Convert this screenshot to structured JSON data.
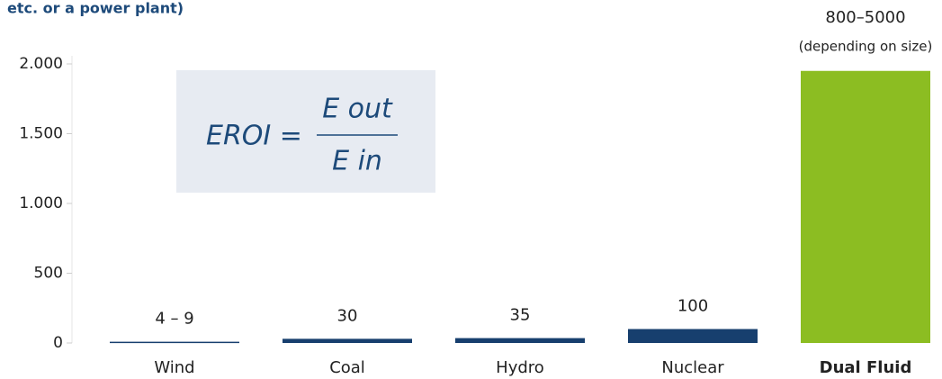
{
  "chart_data": {
    "type": "bar",
    "title": "etc. or a power plant)",
    "categories": [
      "Wind",
      "Coal",
      "Hydro",
      "Nuclear",
      "Dual Fluid"
    ],
    "values": [
      9,
      30,
      35,
      100,
      1950
    ],
    "value_labels": [
      "4 – 9",
      "30",
      "35",
      "100",
      "800–5000"
    ],
    "colors": [
      "#173f6e",
      "#173f6e",
      "#173f6e",
      "#173f6e",
      "#8cbd22"
    ],
    "highlight_label": "Dual Fluid",
    "bar_note": "(depending on size)",
    "formula": {
      "left": "EROI =",
      "numerator": "E out",
      "denominator": "E in"
    },
    "ylim": [
      0,
      2000
    ],
    "yticks": [
      0,
      500,
      {
        "value": 1000,
        "label": "1.000"
      },
      {
        "value": 1500,
        "label": "1.500"
      },
      {
        "value": 2000,
        "label": "2.000"
      }
    ],
    "grid": false
  }
}
